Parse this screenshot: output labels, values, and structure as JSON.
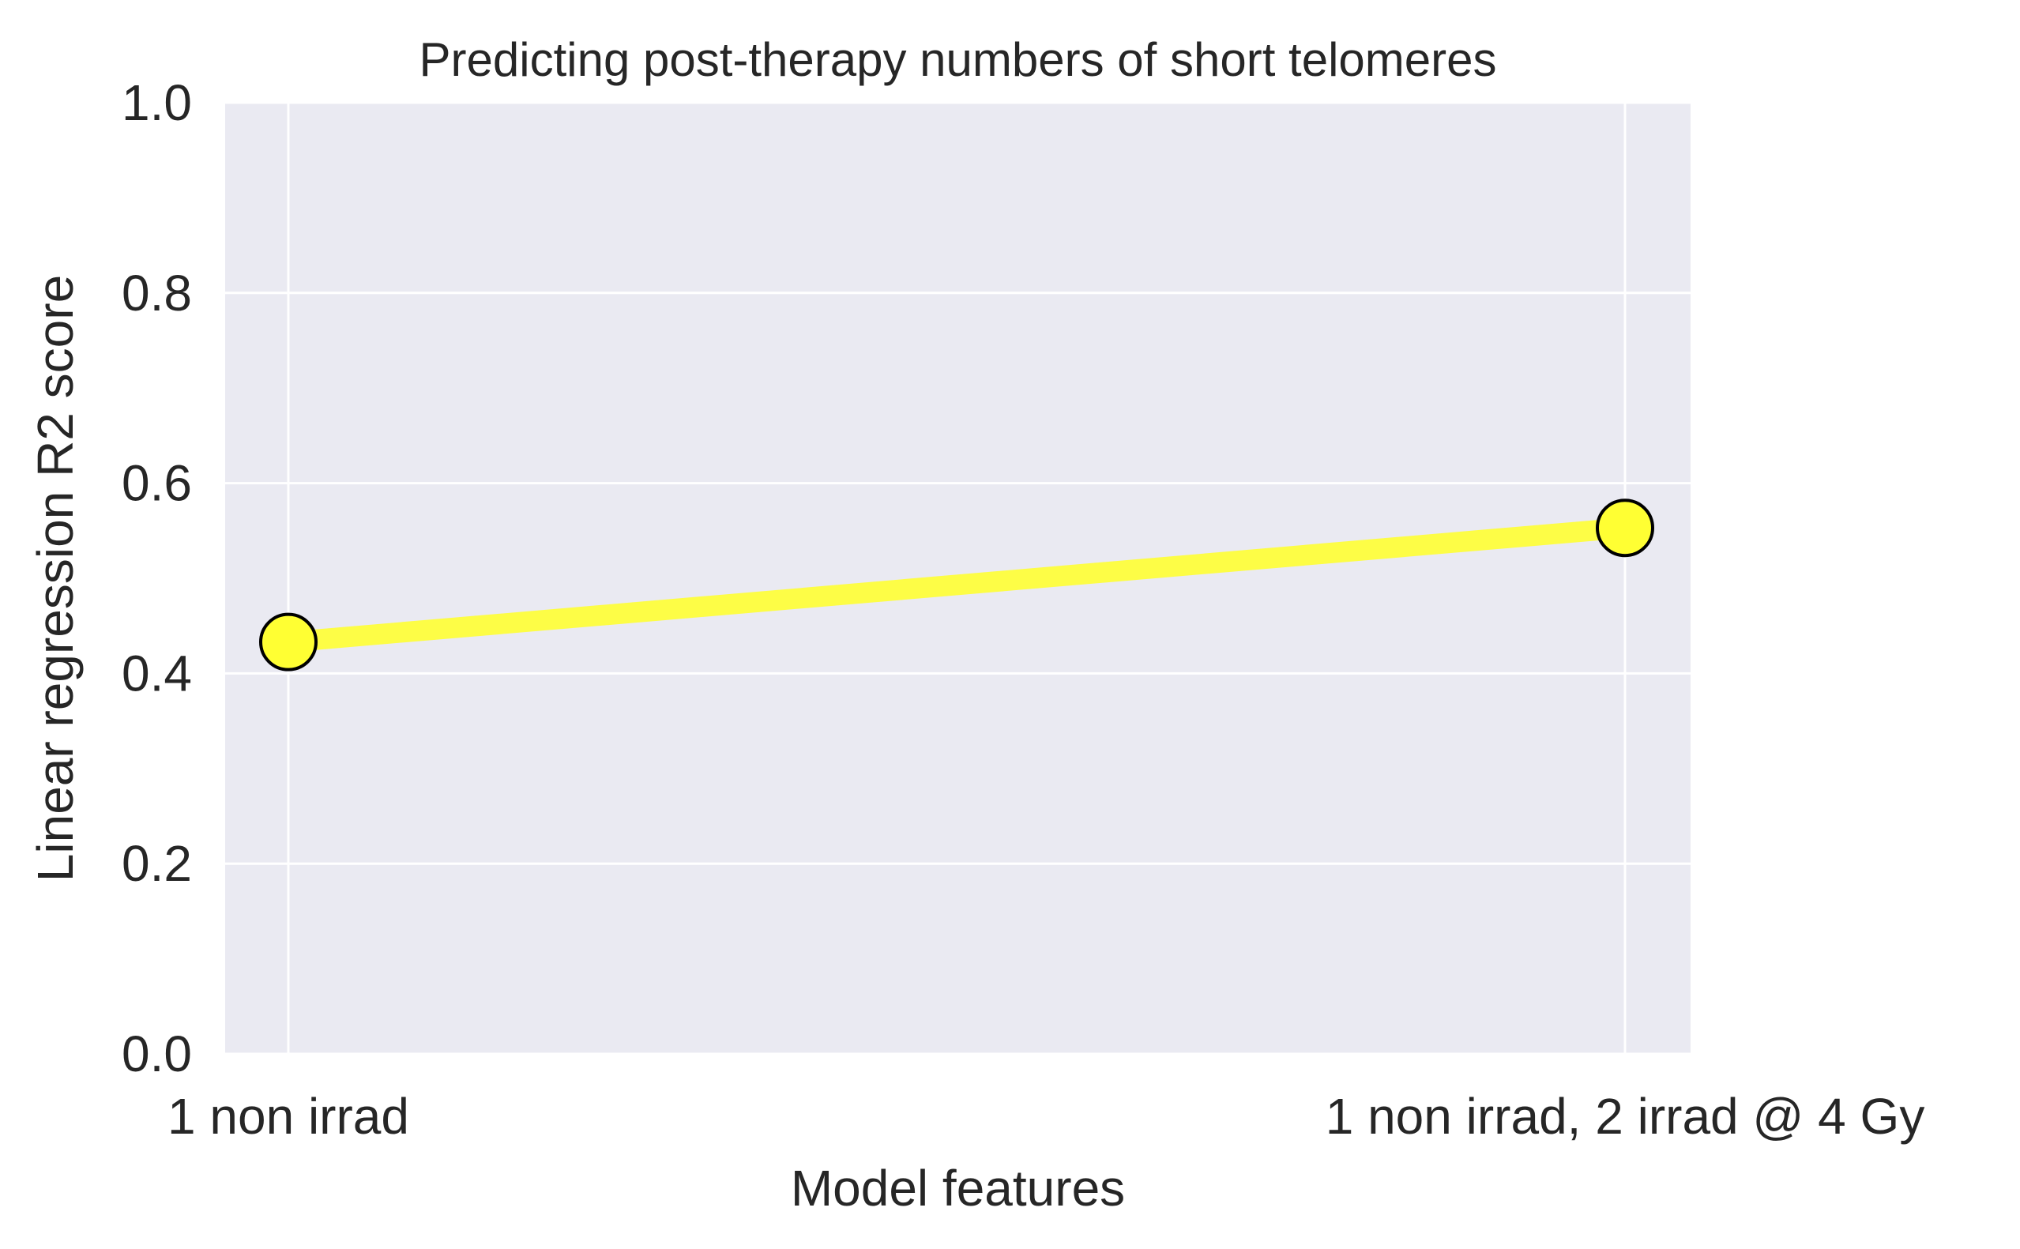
{
  "chart_data": {
    "type": "line",
    "title": "Predicting post-therapy numbers of short telomeres",
    "xlabel": "Model features",
    "ylabel": "Linear regression R2 score",
    "categories": [
      "1 non irrad",
      "1 non irrad, 2 irrad @ 4 Gy"
    ],
    "series": [
      {
        "values": [
          0.433,
          0.553
        ],
        "line_color": "#ffff33",
        "marker_fill": "#ffff33",
        "marker_edge": "#000000",
        "marker": "circle"
      }
    ],
    "ylim": [
      0,
      1.0
    ],
    "yticks": [
      "0.0",
      "0.2",
      "0.4",
      "0.6",
      "0.8",
      "1.0"
    ],
    "grid": true,
    "legend": "none",
    "colors": {
      "plot_background": "#eaeaf2",
      "grid": "#ffffff",
      "text": "#262626"
    }
  }
}
